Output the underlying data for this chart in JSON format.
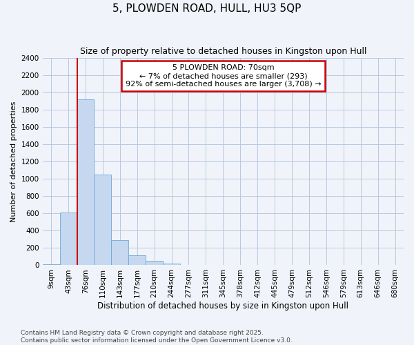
{
  "title": "5, PLOWDEN ROAD, HULL, HU3 5QP",
  "subtitle": "Size of property relative to detached houses in Kingston upon Hull",
  "xlabel": "Distribution of detached houses by size in Kingston upon Hull",
  "ylabel": "Number of detached properties",
  "categories": [
    "9sqm",
    "43sqm",
    "76sqm",
    "110sqm",
    "143sqm",
    "177sqm",
    "210sqm",
    "244sqm",
    "277sqm",
    "311sqm",
    "345sqm",
    "378sqm",
    "412sqm",
    "445sqm",
    "479sqm",
    "512sqm",
    "546sqm",
    "579sqm",
    "613sqm",
    "646sqm",
    "680sqm"
  ],
  "values": [
    15,
    610,
    1920,
    1050,
    295,
    115,
    48,
    20,
    5,
    2,
    0,
    0,
    0,
    0,
    0,
    0,
    0,
    0,
    0,
    0,
    0
  ],
  "bar_color": "#c5d8f0",
  "bar_edge_color": "#6fa8d4",
  "annotation_text_line1": "5 PLOWDEN ROAD: 70sqm",
  "annotation_text_line2": "← 7% of detached houses are smaller (293)",
  "annotation_text_line3": "92% of semi-detached houses are larger (3,708) →",
  "annotation_box_facecolor": "#ffffff",
  "annotation_box_edgecolor": "#cc0000",
  "vline_color": "#cc0000",
  "ylim": [
    0,
    2400
  ],
  "yticks": [
    0,
    200,
    400,
    600,
    800,
    1000,
    1200,
    1400,
    1600,
    1800,
    2000,
    2200,
    2400
  ],
  "grid_color": "#b8c8e0",
  "bg_color": "#f0f4fa",
  "plot_bg_color": "#f0f4fa",
  "footer_line1": "Contains HM Land Registry data © Crown copyright and database right 2025.",
  "footer_line2": "Contains public sector information licensed under the Open Government Licence v3.0.",
  "title_fontsize": 11,
  "subtitle_fontsize": 9,
  "xlabel_fontsize": 8.5,
  "ylabel_fontsize": 8,
  "tick_fontsize": 7.5,
  "annotation_fontsize": 8,
  "footer_fontsize": 6.5
}
